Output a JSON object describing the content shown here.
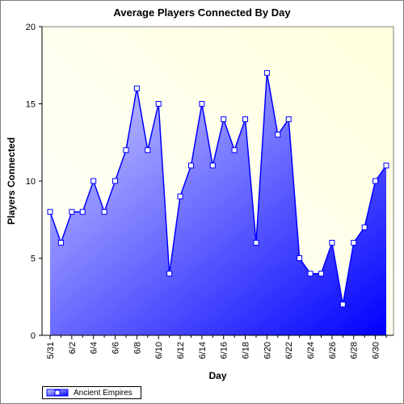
{
  "chart_data": {
    "type": "area",
    "title": "Average Players Connected By Day",
    "xlabel": "Day",
    "ylabel": "Players Connected",
    "ylim": [
      0,
      20
    ],
    "yticks": [
      0,
      5,
      10,
      15,
      20
    ],
    "x": [
      "5/31",
      "6/1",
      "6/2",
      "6/3",
      "6/4",
      "6/5",
      "6/6",
      "6/7",
      "6/8",
      "6/9",
      "6/10",
      "6/11",
      "6/12",
      "6/13",
      "6/14",
      "6/15",
      "6/16",
      "6/17",
      "6/18",
      "6/19",
      "6/20",
      "6/21",
      "6/22",
      "6/23",
      "6/24",
      "6/25",
      "6/26",
      "6/27",
      "6/28",
      "6/29",
      "6/30",
      "7/1"
    ],
    "xtick_labels": [
      "5/31",
      "6/2",
      "6/4",
      "6/6",
      "6/8",
      "6/10",
      "6/12",
      "6/14",
      "6/16",
      "6/18",
      "6/20",
      "6/22",
      "6/24",
      "6/26",
      "6/28",
      "6/30"
    ],
    "series": [
      {
        "name": "Ancient Empires",
        "color": "#0000ff",
        "values": [
          8,
          6,
          8,
          8,
          10,
          8,
          10,
          12,
          16,
          12,
          15,
          4,
          9,
          11,
          15,
          11,
          14,
          12,
          14,
          6,
          17,
          13,
          14,
          5,
          4,
          4,
          6,
          2,
          6,
          7,
          10,
          11
        ]
      }
    ],
    "grid": false,
    "legend": "bottom-left",
    "plot_background": "#ffffe0"
  }
}
